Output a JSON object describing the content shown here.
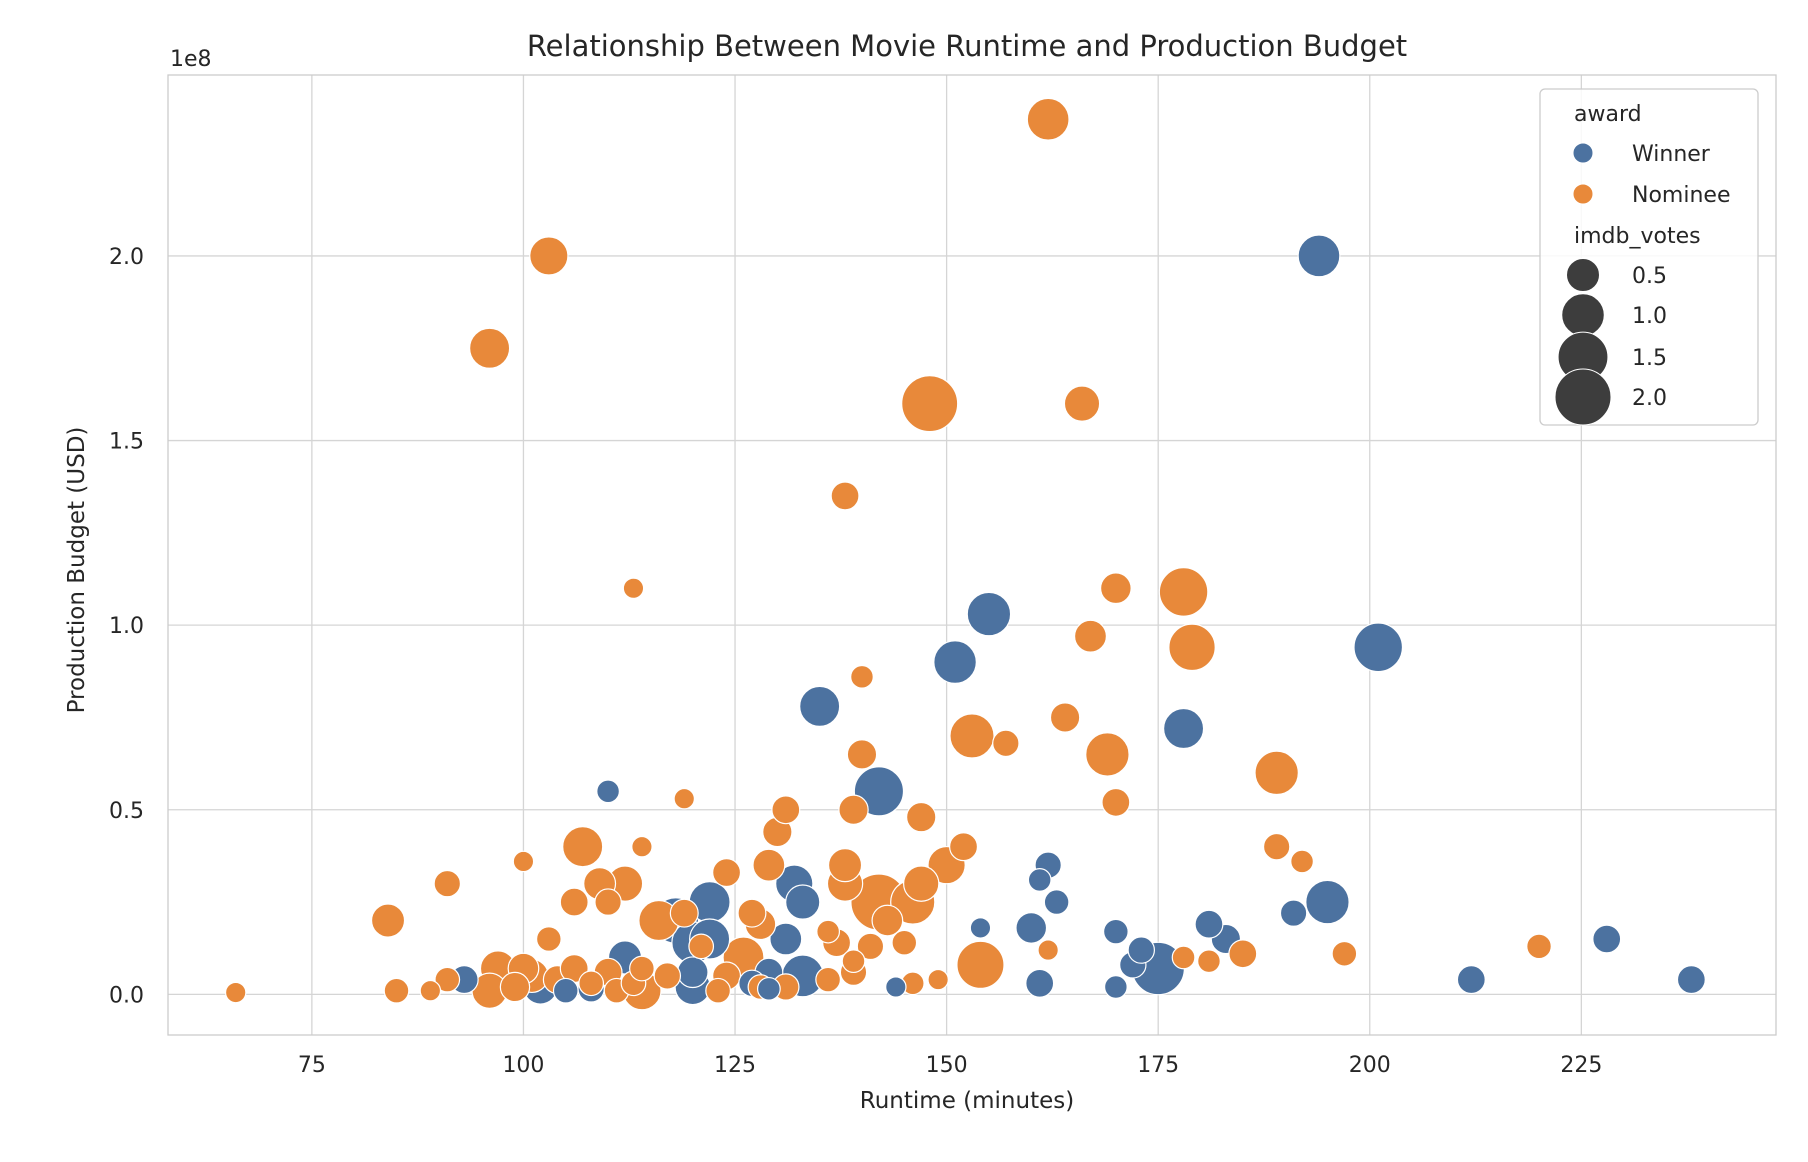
{
  "chart_data": {
    "type": "scatter",
    "title": "Relationship Between Movie Runtime and Production Budget",
    "xlabel": "Runtime (minutes)",
    "ylabel": "Production Budget (USD)",
    "y_offset_label": "1e8",
    "xlim": [
      58,
      248
    ],
    "ylim": [
      -0.11,
      2.49
    ],
    "y_scale_note": "values in units of 1e8 USD",
    "x_ticks": [
      75,
      100,
      125,
      150,
      175,
      200,
      225
    ],
    "x_tick_labels": [
      "75",
      "100",
      "125",
      "150",
      "175",
      "200",
      "225"
    ],
    "y_ticks": [
      0.0,
      0.5,
      1.0,
      1.5,
      2.0
    ],
    "y_tick_labels": [
      "0.0",
      "0.5",
      "1.0",
      "1.5",
      "2.0"
    ],
    "grid": true,
    "legend_position": "top-right",
    "hue_title": "award",
    "size_title": "imdb_votes",
    "hue_entries": [
      {
        "name": "Winner",
        "color": "#4c72a0"
      },
      {
        "name": "Nominee",
        "color": "#e8893a"
      }
    ],
    "size_entries": [
      {
        "label": "0.5",
        "value": 0.5
      },
      {
        "label": "1.0",
        "value": 1.0
      },
      {
        "label": "1.5",
        "value": 1.5
      },
      {
        "label": "2.0",
        "value": 2.0
      }
    ],
    "series": [
      {
        "name": "Winner",
        "color": "#4c72a0",
        "points": [
          [
            194,
            2.0,
            0.95
          ],
          [
            201,
            0.94,
            1.4
          ],
          [
            155,
            1.03,
            1.05
          ],
          [
            151,
            0.9,
            1.0
          ],
          [
            142,
            0.55,
            1.45
          ],
          [
            135,
            0.78,
            0.85
          ],
          [
            178,
            0.72,
            0.85
          ],
          [
            195,
            0.25,
            1.05
          ],
          [
            175,
            0.07,
            1.7
          ],
          [
            110,
            0.55,
            0.15
          ],
          [
            132,
            0.3,
            0.7
          ],
          [
            133,
            0.25,
            0.55
          ],
          [
            122,
            0.25,
            0.9
          ],
          [
            118,
            0.2,
            1.2
          ],
          [
            120,
            0.14,
            0.95
          ],
          [
            122,
            0.15,
            0.85
          ],
          [
            131,
            0.15,
            0.45
          ],
          [
            112,
            0.1,
            0.5
          ],
          [
            120,
            0.06,
            0.4
          ],
          [
            120,
            0.02,
            0.6
          ],
          [
            129,
            0.06,
            0.3
          ],
          [
            133,
            0.05,
            0.95
          ],
          [
            102,
            0.02,
            0.55
          ],
          [
            108,
            0.015,
            0.25
          ],
          [
            93,
            0.04,
            0.3
          ],
          [
            160,
            0.18,
            0.4
          ],
          [
            161,
            0.03,
            0.3
          ],
          [
            161,
            0.31,
            0.15
          ],
          [
            162,
            0.35,
            0.25
          ],
          [
            163,
            0.25,
            0.2
          ],
          [
            170,
            0.17,
            0.2
          ],
          [
            170,
            0.02,
            0.15
          ],
          [
            172,
            0.08,
            0.25
          ],
          [
            173,
            0.12,
            0.25
          ],
          [
            181,
            0.19,
            0.3
          ],
          [
            183,
            0.15,
            0.35
          ],
          [
            191,
            0.22,
            0.25
          ],
          [
            212,
            0.04,
            0.3
          ],
          [
            228,
            0.15,
            0.3
          ],
          [
            238,
            0.04,
            0.3
          ],
          [
            144,
            0.02,
            0.1
          ],
          [
            154,
            0.18,
            0.1
          ],
          [
            127,
            0.03,
            0.25
          ],
          [
            129,
            0.015,
            0.15
          ],
          [
            105,
            0.01,
            0.2
          ]
        ]
      },
      {
        "name": "Nominee",
        "color": "#e8893a",
        "points": [
          [
            162,
            2.37,
            0.95
          ],
          [
            103,
            2.0,
            0.75
          ],
          [
            96,
            1.75,
            0.85
          ],
          [
            148,
            1.6,
            2.0
          ],
          [
            166,
            1.6,
            0.6
          ],
          [
            138,
            1.35,
            0.3
          ],
          [
            170,
            1.1,
            0.4
          ],
          [
            178,
            1.09,
            1.4
          ],
          [
            179,
            0.94,
            1.25
          ],
          [
            113,
            1.1,
            0.1
          ],
          [
            167,
            0.97,
            0.45
          ],
          [
            140,
            0.86,
            0.15
          ],
          [
            164,
            0.75,
            0.35
          ],
          [
            153,
            0.7,
            1.1
          ],
          [
            157,
            0.68,
            0.25
          ],
          [
            169,
            0.65,
            1.05
          ],
          [
            140,
            0.65,
            0.35
          ],
          [
            189,
            0.6,
            1.05
          ],
          [
            170,
            0.52,
            0.3
          ],
          [
            131,
            0.5,
            0.3
          ],
          [
            139,
            0.5,
            0.35
          ],
          [
            147,
            0.48,
            0.35
          ],
          [
            119,
            0.53,
            0.1
          ],
          [
            130,
            0.44,
            0.35
          ],
          [
            107,
            0.4,
            0.85
          ],
          [
            114,
            0.4,
            0.1
          ],
          [
            152,
            0.4,
            0.3
          ],
          [
            150,
            0.35,
            0.7
          ],
          [
            129,
            0.35,
            0.45
          ],
          [
            138,
            0.35,
            0.5
          ],
          [
            124,
            0.33,
            0.3
          ],
          [
            147,
            0.3,
            0.6
          ],
          [
            138,
            0.3,
            0.6
          ],
          [
            142,
            0.25,
            2.0
          ],
          [
            146,
            0.25,
            1.1
          ],
          [
            112,
            0.3,
            0.6
          ],
          [
            109,
            0.3,
            0.45
          ],
          [
            100,
            0.36,
            0.1
          ],
          [
            91,
            0.3,
            0.25
          ],
          [
            84,
            0.2,
            0.5
          ],
          [
            106,
            0.25,
            0.3
          ],
          [
            110,
            0.25,
            0.25
          ],
          [
            127,
            0.22,
            0.3
          ],
          [
            128,
            0.19,
            0.4
          ],
          [
            116,
            0.2,
            0.85
          ],
          [
            119,
            0.22,
            0.3
          ],
          [
            143,
            0.2,
            0.4
          ],
          [
            141,
            0.13,
            0.25
          ],
          [
            145,
            0.14,
            0.2
          ],
          [
            137,
            0.14,
            0.3
          ],
          [
            136,
            0.17,
            0.15
          ],
          [
            126,
            0.1,
            0.9
          ],
          [
            103,
            0.15,
            0.2
          ],
          [
            97,
            0.07,
            0.6
          ],
          [
            100,
            0.07,
            0.4
          ],
          [
            101,
            0.05,
            0.5
          ],
          [
            96,
            0.01,
            0.6
          ],
          [
            99,
            0.02,
            0.35
          ],
          [
            104,
            0.04,
            0.3
          ],
          [
            106,
            0.07,
            0.3
          ],
          [
            110,
            0.06,
            0.3
          ],
          [
            114,
            0.01,
            0.75
          ],
          [
            117,
            0.05,
            0.25
          ],
          [
            124,
            0.05,
            0.3
          ],
          [
            131,
            0.02,
            0.25
          ],
          [
            139,
            0.06,
            0.25
          ],
          [
            146,
            0.03,
            0.15
          ],
          [
            149,
            0.04,
            0.1
          ],
          [
            154,
            0.08,
            1.3
          ],
          [
            162,
            0.12,
            0.1
          ],
          [
            178,
            0.1,
            0.15
          ],
          [
            181,
            0.09,
            0.15
          ],
          [
            185,
            0.11,
            0.3
          ],
          [
            189,
            0.4,
            0.25
          ],
          [
            192,
            0.36,
            0.15
          ],
          [
            197,
            0.11,
            0.2
          ],
          [
            220,
            0.13,
            0.2
          ],
          [
            66,
            0.005,
            0.1
          ],
          [
            85,
            0.01,
            0.2
          ],
          [
            89,
            0.01,
            0.1
          ],
          [
            91,
            0.04,
            0.2
          ],
          [
            108,
            0.03,
            0.2
          ],
          [
            111,
            0.01,
            0.2
          ],
          [
            113,
            0.03,
            0.2
          ],
          [
            123,
            0.01,
            0.2
          ],
          [
            128,
            0.02,
            0.2
          ],
          [
            136,
            0.04,
            0.2
          ],
          [
            139,
            0.09,
            0.15
          ],
          [
            114,
            0.07,
            0.2
          ],
          [
            121,
            0.13,
            0.2
          ]
        ]
      }
    ]
  }
}
